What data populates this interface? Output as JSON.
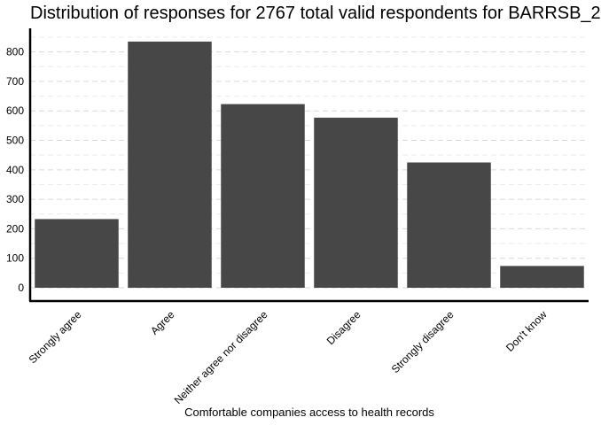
{
  "chart_data": {
    "type": "bar",
    "title": "Distribution of responses for 2767 total valid respondents for BARRSB_2",
    "xlabel": "Comfortable companies access to health records",
    "ylabel": "",
    "categories": [
      "Strongly agree",
      "Agree",
      "Neither agree nor disagree",
      "Disagree",
      "Strongly disagree",
      "Don't know"
    ],
    "values": [
      233,
      835,
      623,
      577,
      425,
      74
    ],
    "ylim": [
      -45,
      880
    ],
    "yticks": [
      0,
      100,
      200,
      300,
      400,
      500,
      600,
      700,
      800
    ],
    "grid": true,
    "bar_color": "#474747",
    "grid_color": "#d9d9d9",
    "axis_color": "#000000"
  }
}
